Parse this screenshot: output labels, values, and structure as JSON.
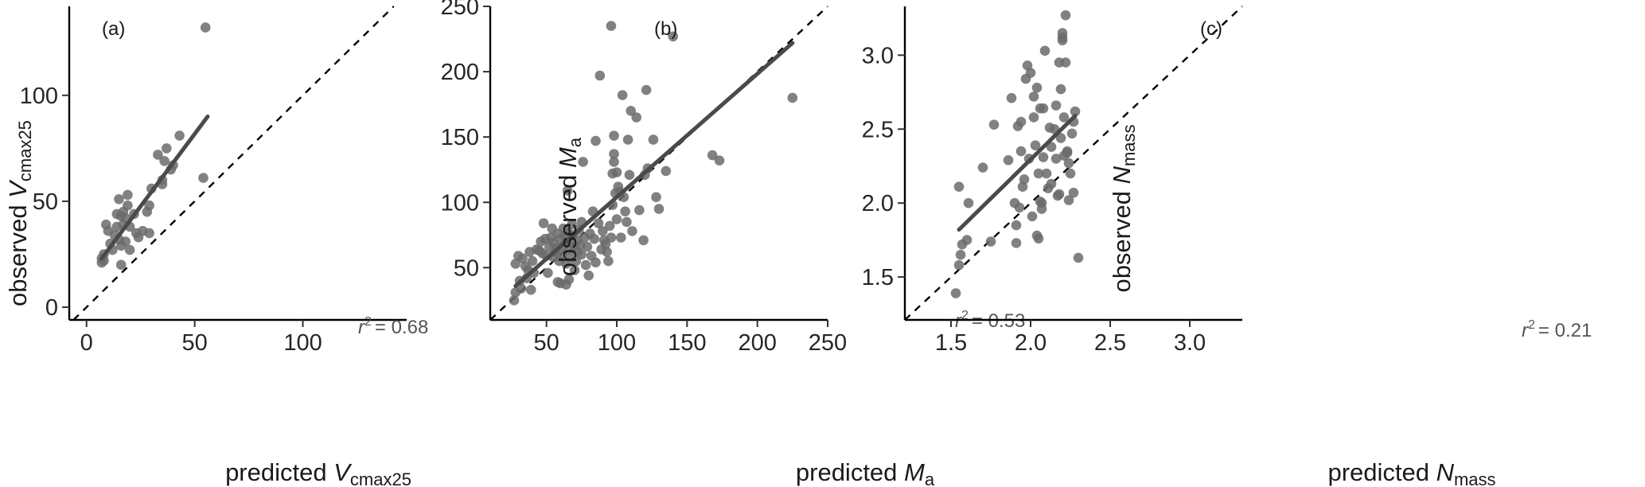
{
  "figure": {
    "point_color": "#6b6b6b",
    "fit_color": "#4a4a4a"
  },
  "chart_data": [
    {
      "type": "scatter",
      "panel_label": "(a)",
      "xlabel": {
        "prefix": "predicted ",
        "var": "V",
        "sub": "cmax25"
      },
      "ylabel": {
        "prefix": "observed ",
        "var": "V",
        "sub": "cmax25"
      },
      "xlim": [
        -8,
        148
      ],
      "ylim": [
        -6,
        142
      ],
      "xticks": [
        0,
        50,
        100
      ],
      "yticks": [
        0,
        50,
        100
      ],
      "r2_label": "r",
      "r2_sup": "2",
      "r2_value": "= 0.68",
      "fit": {
        "x": [
          7,
          56
        ],
        "y": [
          23,
          90
        ]
      },
      "points": [
        [
          7,
          21
        ],
        [
          7,
          23
        ],
        [
          8,
          25
        ],
        [
          8,
          22
        ],
        [
          9,
          39
        ],
        [
          10,
          36
        ],
        [
          11,
          30
        ],
        [
          12,
          27
        ],
        [
          13,
          34
        ],
        [
          14,
          44
        ],
        [
          14,
          38
        ],
        [
          15,
          51
        ],
        [
          15,
          32
        ],
        [
          16,
          20
        ],
        [
          16,
          29
        ],
        [
          16,
          43
        ],
        [
          17,
          39
        ],
        [
          17,
          45
        ],
        [
          18,
          31
        ],
        [
          18,
          42
        ],
        [
          19,
          48
        ],
        [
          19,
          53
        ],
        [
          20,
          38
        ],
        [
          20,
          27
        ],
        [
          22,
          44
        ],
        [
          23,
          35
        ],
        [
          24,
          33
        ],
        [
          26,
          36
        ],
        [
          28,
          45
        ],
        [
          29,
          35
        ],
        [
          29,
          48
        ],
        [
          30,
          56
        ],
        [
          33,
          72
        ],
        [
          35,
          58
        ],
        [
          35,
          60
        ],
        [
          36,
          69
        ],
        [
          37,
          75
        ],
        [
          39,
          65
        ],
        [
          40,
          67
        ],
        [
          43,
          81
        ],
        [
          54,
          61
        ],
        [
          55,
          132
        ]
      ]
    },
    {
      "type": "scatter",
      "panel_label": "(b)",
      "xlabel": {
        "prefix": "predicted ",
        "var": "M",
        "sub": "a"
      },
      "ylabel": {
        "prefix": "observed ",
        "var": "M",
        "sub": "a"
      },
      "xlim": [
        10,
        250
      ],
      "ylim": [
        10,
        250
      ],
      "xticks": [
        50,
        100,
        150,
        200,
        250
      ],
      "yticks": [
        50,
        100,
        150,
        200,
        250
      ],
      "r2_label": "r",
      "r2_sup": "2",
      "r2_value": "= 0.53",
      "fit": {
        "x": [
          28,
          225
        ],
        "y": [
          36,
          222
        ]
      },
      "points": [
        [
          27,
          25
        ],
        [
          28,
          31
        ],
        [
          28,
          53
        ],
        [
          30,
          59
        ],
        [
          31,
          40
        ],
        [
          32,
          34
        ],
        [
          33,
          57
        ],
        [
          35,
          51
        ],
        [
          36,
          42
        ],
        [
          37,
          48
        ],
        [
          38,
          62
        ],
        [
          39,
          33
        ],
        [
          40,
          55
        ],
        [
          41,
          46
        ],
        [
          43,
          64
        ],
        [
          45,
          63
        ],
        [
          46,
          70
        ],
        [
          47,
          61
        ],
        [
          48,
          84
        ],
        [
          49,
          72
        ],
        [
          50,
          59
        ],
        [
          51,
          46
        ],
        [
          52,
          66
        ],
        [
          53,
          73
        ],
        [
          54,
          80
        ],
        [
          55,
          58
        ],
        [
          55,
          69
        ],
        [
          56,
          62
        ],
        [
          57,
          65
        ],
        [
          58,
          76
        ],
        [
          58,
          39
        ],
        [
          59,
          55
        ],
        [
          60,
          38
        ],
        [
          60,
          72
        ],
        [
          61,
          60
        ],
        [
          62,
          67
        ],
        [
          62,
          80
        ],
        [
          63,
          74
        ],
        [
          64,
          53
        ],
        [
          64,
          37
        ],
        [
          65,
          109
        ],
        [
          65,
          77
        ],
        [
          66,
          64
        ],
        [
          66,
          41
        ],
        [
          67,
          58
        ],
        [
          68,
          69
        ],
        [
          68,
          83
        ],
        [
          69,
          75
        ],
        [
          70,
          66
        ],
        [
          70,
          48
        ],
        [
          71,
          55
        ],
        [
          72,
          62
        ],
        [
          72,
          71
        ],
        [
          73,
          79
        ],
        [
          74,
          67
        ],
        [
          75,
          60
        ],
        [
          75,
          85
        ],
        [
          76,
          131
        ],
        [
          77,
          73
        ],
        [
          78,
          52
        ],
        [
          79,
          66
        ],
        [
          80,
          44
        ],
        [
          81,
          76
        ],
        [
          82,
          59
        ],
        [
          83,
          93
        ],
        [
          84,
          72
        ],
        [
          85,
          147
        ],
        [
          85,
          54
        ],
        [
          87,
          84
        ],
        [
          88,
          197
        ],
        [
          89,
          64
        ],
        [
          90,
          78
        ],
        [
          91,
          71
        ],
        [
          92,
          68
        ],
        [
          93,
          62
        ],
        [
          94,
          55
        ],
        [
          95,
          82
        ],
        [
          96,
          73
        ],
        [
          96,
          235
        ],
        [
          97,
          98
        ],
        [
          97,
          122
        ],
        [
          98,
          137
        ],
        [
          98,
          131
        ],
        [
          98,
          151
        ],
        [
          99,
          107
        ],
        [
          100,
          123
        ],
        [
          100,
          87
        ],
        [
          101,
          112
        ],
        [
          102,
          108
        ],
        [
          103,
          73
        ],
        [
          104,
          182
        ],
        [
          105,
          104
        ],
        [
          106,
          93
        ],
        [
          107,
          85
        ],
        [
          108,
          148
        ],
        [
          109,
          121
        ],
        [
          110,
          170
        ],
        [
          111,
          78
        ],
        [
          114,
          165
        ],
        [
          116,
          94
        ],
        [
          119,
          71
        ],
        [
          120,
          121
        ],
        [
          121,
          186
        ],
        [
          122,
          126
        ],
        [
          126,
          148
        ],
        [
          128,
          104
        ],
        [
          130,
          95
        ],
        [
          135,
          124
        ],
        [
          140,
          227
        ],
        [
          168,
          136
        ],
        [
          173,
          132
        ],
        [
          225,
          180
        ]
      ]
    },
    {
      "type": "scatter",
      "panel_label": "(c)",
      "xlabel": {
        "prefix": "predicted ",
        "var": "N",
        "sub": "mass"
      },
      "ylabel": {
        "prefix": "observed ",
        "var": "N",
        "sub": "mass"
      },
      "xlim": [
        1.21,
        3.33
      ],
      "ylim": [
        1.21,
        3.33
      ],
      "xticks": [
        1.5,
        2.0,
        2.5,
        3.0
      ],
      "xtick_labels": [
        "1.5",
        "2.0",
        "2.5",
        "3.0"
      ],
      "yticks": [
        1.5,
        2.0,
        2.5,
        3.0
      ],
      "ytick_labels": [
        "1.5",
        "2.0",
        "2.5",
        "3.0"
      ],
      "r2_label": "r",
      "r2_sup": "2",
      "r2_value": "= 0.21",
      "fit": {
        "x": [
          1.55,
          2.28
        ],
        "y": [
          1.82,
          2.59
        ]
      },
      "points": [
        [
          1.53,
          1.39
        ],
        [
          1.55,
          2.11
        ],
        [
          1.55,
          1.58
        ],
        [
          1.56,
          1.65
        ],
        [
          1.57,
          1.72
        ],
        [
          1.6,
          1.75
        ],
        [
          1.61,
          2.0
        ],
        [
          1.7,
          2.24
        ],
        [
          1.75,
          1.74
        ],
        [
          1.77,
          2.53
        ],
        [
          1.86,
          2.29
        ],
        [
          1.88,
          2.71
        ],
        [
          1.9,
          2.0
        ],
        [
          1.91,
          1.85
        ],
        [
          1.91,
          1.73
        ],
        [
          1.92,
          2.52
        ],
        [
          1.93,
          1.97
        ],
        [
          1.94,
          2.55
        ],
        [
          1.94,
          2.35
        ],
        [
          1.95,
          2.11
        ],
        [
          1.96,
          2.16
        ],
        [
          1.97,
          2.84
        ],
        [
          1.98,
          2.93
        ],
        [
          1.99,
          2.3
        ],
        [
          2.0,
          2.88
        ],
        [
          2.01,
          1.91
        ],
        [
          2.02,
          2.72
        ],
        [
          2.03,
          2.39
        ],
        [
          2.04,
          2.78
        ],
        [
          2.04,
          1.78
        ],
        [
          2.05,
          2.2
        ],
        [
          2.05,
          1.76
        ],
        [
          2.06,
          2.64
        ],
        [
          2.07,
          2.0
        ],
        [
          2.07,
          1.96
        ],
        [
          2.08,
          2.31
        ],
        [
          2.09,
          3.03
        ],
        [
          2.1,
          2.2
        ],
        [
          2.11,
          2.1
        ],
        [
          2.12,
          2.51
        ],
        [
          2.13,
          2.38
        ],
        [
          2.15,
          2.5
        ],
        [
          2.16,
          2.66
        ],
        [
          2.17,
          2.05
        ],
        [
          2.18,
          2.95
        ],
        [
          2.19,
          2.77
        ],
        [
          2.19,
          2.44
        ],
        [
          2.2,
          3.15
        ],
        [
          2.2,
          3.12
        ],
        [
          2.2,
          3.1
        ],
        [
          2.21,
          2.58
        ],
        [
          2.21,
          2.32
        ],
        [
          2.22,
          3.27
        ],
        [
          2.23,
          2.34
        ],
        [
          2.23,
          2.35
        ],
        [
          2.24,
          2.02
        ],
        [
          2.25,
          2.2
        ],
        [
          2.26,
          2.47
        ],
        [
          2.27,
          2.55
        ],
        [
          2.27,
          2.07
        ],
        [
          2.28,
          2.62
        ],
        [
          2.3,
          1.63
        ],
        [
          2.13,
          2.13
        ],
        [
          2.16,
          2.3
        ],
        [
          2.18,
          2.06
        ],
        [
          2.02,
          2.58
        ],
        [
          2.08,
          2.64
        ],
        [
          2.24,
          2.27
        ],
        [
          2.22,
          2.95
        ],
        [
          2.06,
          2.01
        ]
      ]
    }
  ]
}
